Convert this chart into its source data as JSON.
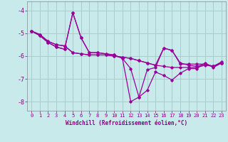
{
  "xlabel": "Windchill (Refroidissement éolien,°C)",
  "bg_color": "#c8eaea",
  "grid_color": "#aacccc",
  "line_color": "#990099",
  "tick_color": "#880088",
  "xlim": [
    -0.5,
    23.5
  ],
  "ylim": [
    -8.4,
    -3.6
  ],
  "yticks": [
    -8,
    -7,
    -6,
    -5,
    -4
  ],
  "xticks": [
    0,
    1,
    2,
    3,
    4,
    5,
    6,
    7,
    8,
    9,
    10,
    11,
    12,
    13,
    14,
    15,
    16,
    17,
    18,
    19,
    20,
    21,
    22,
    23
  ],
  "series": [
    [
      -4.9,
      -5.1,
      -5.4,
      -5.6,
      -5.7,
      -4.1,
      -5.2,
      -5.85,
      -5.85,
      -5.9,
      -5.95,
      -6.1,
      -6.55,
      -7.8,
      -7.5,
      -6.7,
      -6.85,
      -7.05,
      -6.75,
      -6.55,
      -6.55,
      -6.3,
      -6.5,
      -6.3
    ],
    [
      -4.9,
      -5.1,
      -5.4,
      -5.6,
      -5.7,
      -4.1,
      -5.2,
      -5.85,
      -5.85,
      -5.9,
      -5.95,
      -6.1,
      -8.0,
      -7.8,
      -6.6,
      -6.5,
      -5.65,
      -5.75,
      -6.35,
      -6.35,
      -6.35,
      -6.35,
      -6.45,
      -6.25
    ],
    [
      -4.9,
      -5.05,
      -5.35,
      -5.5,
      -5.55,
      -5.85,
      -5.9,
      -5.95,
      -5.95,
      -5.95,
      -6.0,
      -6.05,
      -6.1,
      -6.2,
      -6.3,
      -6.4,
      -5.65,
      -5.75,
      -6.3,
      -6.4,
      -6.45,
      -6.35,
      -6.45,
      -6.3
    ],
    [
      -4.9,
      -5.05,
      -5.35,
      -5.5,
      -5.55,
      -5.85,
      -5.9,
      -5.95,
      -5.95,
      -5.95,
      -6.0,
      -6.05,
      -6.1,
      -6.2,
      -6.3,
      -6.4,
      -6.45,
      -6.5,
      -6.5,
      -6.5,
      -6.5,
      -6.4,
      -6.45,
      -6.3
    ]
  ]
}
